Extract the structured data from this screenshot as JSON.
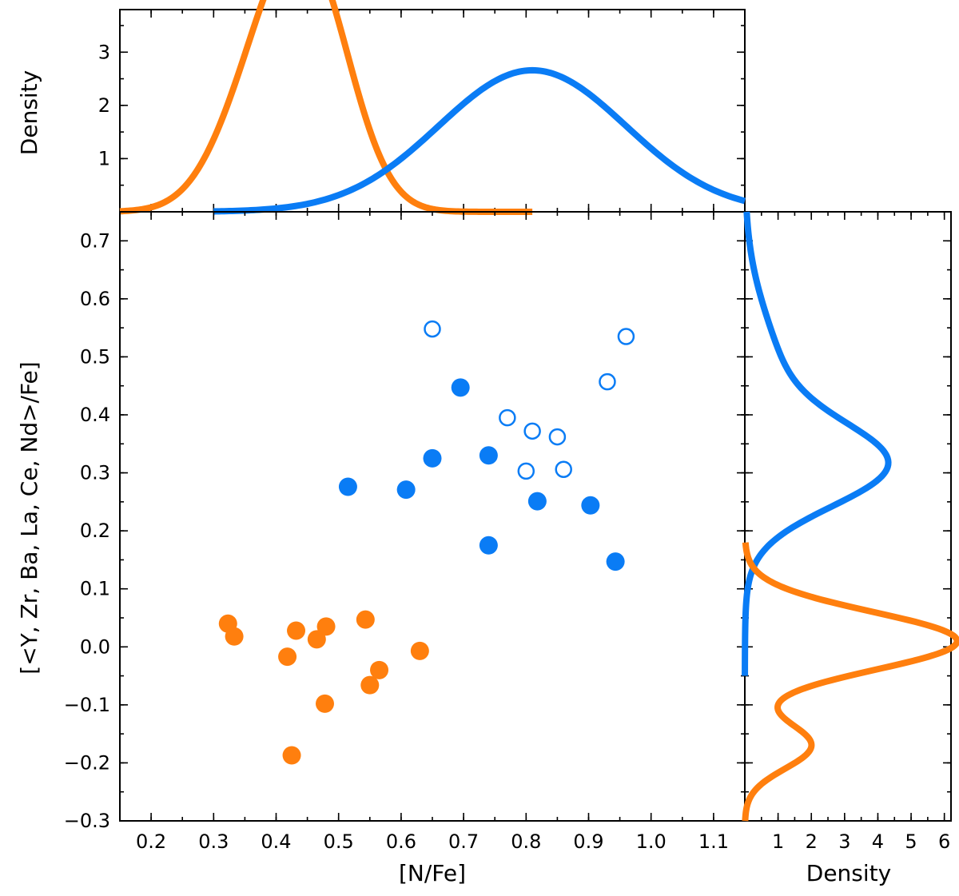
{
  "chart_data": {
    "type": "scatter",
    "xlabel": "[N/Fe]",
    "ylabel": "[<Y, Zr, Ba, La, Ce, Nd>/Fe]",
    "xlim": [
      0.15,
      1.15
    ],
    "ylim": [
      -0.3,
      0.75
    ],
    "x_ticks": [
      "0.2",
      "0.3",
      "0.4",
      "0.5",
      "0.6",
      "0.7",
      "0.8",
      "0.9",
      "1.0",
      "1.1"
    ],
    "y_ticks": [
      "−0.3",
      "−0.2",
      "−0.1",
      "0.0",
      "0.1",
      "0.2",
      "0.3",
      "0.4",
      "0.5",
      "0.6",
      "0.7"
    ],
    "colors": {
      "orange": "#ff7f0e",
      "blue": "#0a7cf5"
    },
    "series": [
      {
        "name": "orange-filled",
        "color": "#ff7f0e",
        "marker": "filled-circle",
        "points": [
          [
            0.323,
            0.04
          ],
          [
            0.333,
            0.018
          ],
          [
            0.418,
            -0.017
          ],
          [
            0.432,
            0.028
          ],
          [
            0.465,
            0.013
          ],
          [
            0.48,
            0.035
          ],
          [
            0.478,
            -0.098
          ],
          [
            0.425,
            -0.187
          ],
          [
            0.543,
            0.047
          ],
          [
            0.55,
            -0.066
          ],
          [
            0.565,
            -0.04
          ],
          [
            0.63,
            -0.007
          ]
        ]
      },
      {
        "name": "blue-filled",
        "color": "#0a7cf5",
        "marker": "filled-circle",
        "points": [
          [
            0.515,
            0.276
          ],
          [
            0.608,
            0.271
          ],
          [
            0.65,
            0.325
          ],
          [
            0.695,
            0.447
          ],
          [
            0.74,
            0.33
          ],
          [
            0.74,
            0.175
          ],
          [
            0.818,
            0.251
          ],
          [
            0.903,
            0.244
          ],
          [
            0.943,
            0.147
          ]
        ]
      },
      {
        "name": "blue-open",
        "color": "#0a7cf5",
        "marker": "open-circle",
        "points": [
          [
            0.65,
            0.548
          ],
          [
            0.77,
            0.395
          ],
          [
            0.81,
            0.372
          ],
          [
            0.85,
            0.362
          ],
          [
            0.8,
            0.303
          ],
          [
            0.86,
            0.306
          ],
          [
            0.93,
            0.457
          ],
          [
            0.96,
            0.535
          ]
        ]
      }
    ],
    "top_density": {
      "ylabel": "Density",
      "ylim": [
        0,
        3.8
      ],
      "y_ticks": [
        "1",
        "2",
        "3"
      ],
      "curves": [
        {
          "name": "orange",
          "color": "#ff7f0e",
          "x_range": [
            0.15,
            0.81
          ],
          "components": [
            {
              "w": 0.6,
              "mu": 0.46,
              "sigma": 0.065
            },
            {
              "w": 0.4,
              "mu": 0.38,
              "sigma": 0.07
            }
          ]
        },
        {
          "name": "blue",
          "color": "#0a7cf5",
          "x_range": [
            0.3,
            1.15
          ],
          "components": [
            {
              "w": 1.0,
              "mu": 0.81,
              "sigma": 0.15
            }
          ]
        }
      ]
    },
    "right_density": {
      "xlabel": "Density",
      "xlim": [
        0,
        6.2
      ],
      "x_ticks": [
        "1",
        "2",
        "3",
        "4",
        "5",
        "6"
      ],
      "curves": [
        {
          "name": "blue",
          "color": "#0a7cf5",
          "y_range": [
            -0.05,
            0.75
          ],
          "components": [
            {
              "w": 0.62,
              "mu": 0.31,
              "sigma": 0.07
            },
            {
              "w": 0.38,
              "mu": 0.43,
              "sigma": 0.13
            }
          ]
        },
        {
          "name": "orange",
          "color": "#ff7f0e",
          "y_range": [
            -0.3,
            0.18
          ],
          "components": [
            {
              "w": 0.8,
              "mu": 0.01,
              "sigma": 0.05
            },
            {
              "w": 0.2,
              "mu": -0.17,
              "sigma": 0.04
            }
          ]
        }
      ]
    }
  }
}
